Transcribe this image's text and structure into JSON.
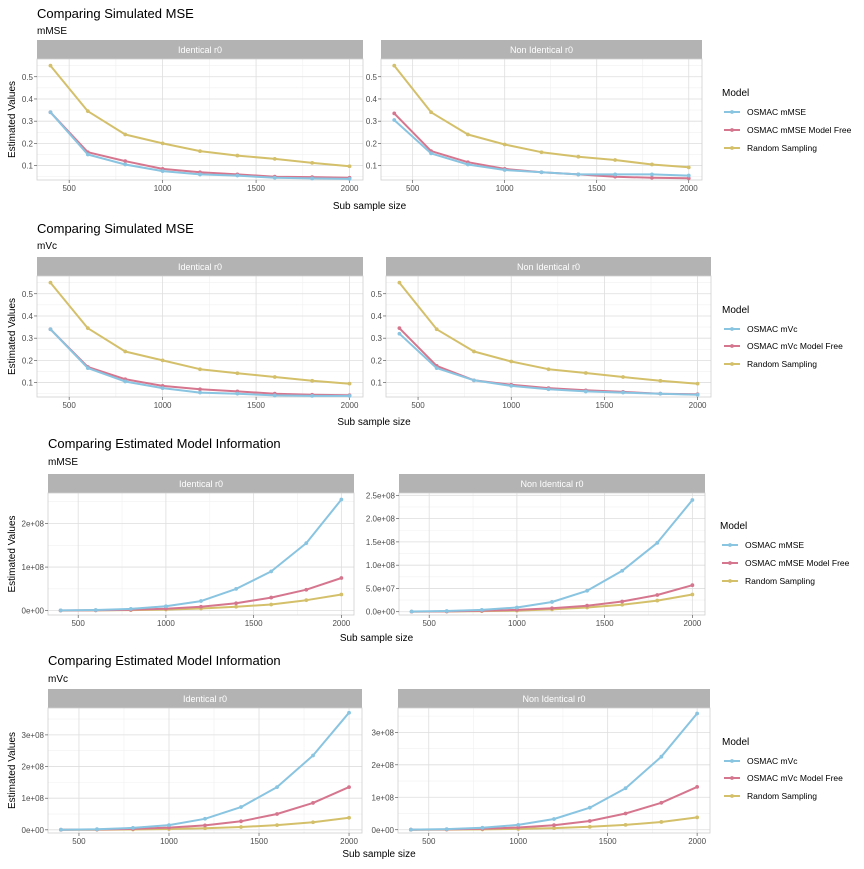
{
  "chart_data": [
    {
      "type": "line",
      "title": "Comparing Simulated MSE",
      "subtitle": "mMSE",
      "xlabel": "Sub sample size",
      "ylabel": "Estimated Values",
      "legend_title": "Model",
      "legend_position": "right",
      "grid": true,
      "x": [
        400,
        600,
        800,
        1000,
        1200,
        1400,
        1600,
        1800,
        2000
      ],
      "xticks": [
        500,
        1000,
        1500,
        2000
      ],
      "panels": [
        {
          "label": "Identical r0",
          "yticks": [
            0.1,
            0.2,
            0.3,
            0.4,
            0.5
          ],
          "ytick_labels": [
            "0.1",
            "0.2",
            "0.3",
            "0.4",
            "0.5"
          ],
          "ylim": [
            0.035,
            0.58
          ],
          "series": [
            {
              "name": "OSMAC mMSE",
              "color": "#89C4E1",
              "values": [
                0.34,
                0.15,
                0.105,
                0.075,
                0.06,
                0.055,
                0.045,
                0.042,
                0.04
              ]
            },
            {
              "name": "OSMAC mMSE Model Free",
              "color": "#D6768E",
              "values": [
                0.34,
                0.16,
                0.12,
                0.085,
                0.07,
                0.06,
                0.05,
                0.048,
                0.045
              ]
            },
            {
              "name": "Random Sampling",
              "color": "#D4C06B",
              "values": [
                0.55,
                0.345,
                0.24,
                0.2,
                0.165,
                0.145,
                0.13,
                0.112,
                0.097
              ]
            }
          ]
        },
        {
          "label": "Non Identical r0",
          "yticks": [
            0.1,
            0.2,
            0.3,
            0.4,
            0.5
          ],
          "ytick_labels": [
            "0.1",
            "0.2",
            "0.3",
            "0.4",
            "0.5"
          ],
          "ylim": [
            0.035,
            0.58
          ],
          "series": [
            {
              "name": "OSMAC mMSE",
              "color": "#89C4E1",
              "values": [
                0.305,
                0.155,
                0.105,
                0.08,
                0.07,
                0.06,
                0.06,
                0.06,
                0.055
              ]
            },
            {
              "name": "OSMAC mMSE Model Free",
              "color": "#D6768E",
              "values": [
                0.335,
                0.165,
                0.115,
                0.085,
                0.07,
                0.06,
                0.05,
                0.045,
                0.043
              ]
            },
            {
              "name": "Random Sampling",
              "color": "#D4C06B",
              "values": [
                0.55,
                0.34,
                0.24,
                0.195,
                0.16,
                0.14,
                0.125,
                0.105,
                0.092
              ]
            }
          ]
        }
      ]
    },
    {
      "type": "line",
      "title": "Comparing Simulated MSE",
      "subtitle": "mVc",
      "xlabel": "Sub sample size",
      "ylabel": "Estimated Values",
      "legend_title": "Model",
      "legend_position": "right",
      "grid": true,
      "x": [
        400,
        600,
        800,
        1000,
        1200,
        1400,
        1600,
        1800,
        2000
      ],
      "xticks": [
        500,
        1000,
        1500,
        2000
      ],
      "panels": [
        {
          "label": "Identical r0",
          "yticks": [
            0.1,
            0.2,
            0.3,
            0.4,
            0.5
          ],
          "ytick_labels": [
            "0.1",
            "0.2",
            "0.3",
            "0.4",
            "0.5"
          ],
          "ylim": [
            0.035,
            0.58
          ],
          "series": [
            {
              "name": "OSMAC mVc",
              "color": "#89C4E1",
              "values": [
                0.34,
                0.165,
                0.105,
                0.075,
                0.055,
                0.05,
                0.042,
                0.04,
                0.04
              ]
            },
            {
              "name": "OSMAC mVc Model Free",
              "color": "#D6768E",
              "values": [
                0.34,
                0.17,
                0.115,
                0.085,
                0.07,
                0.06,
                0.05,
                0.045,
                0.043
              ]
            },
            {
              "name": "Random Sampling",
              "color": "#D4C06B",
              "values": [
                0.55,
                0.345,
                0.24,
                0.2,
                0.16,
                0.142,
                0.125,
                0.108,
                0.095
              ]
            }
          ]
        },
        {
          "label": "Non Identical r0",
          "yticks": [
            0.1,
            0.2,
            0.3,
            0.4,
            0.5
          ],
          "ytick_labels": [
            "0.1",
            "0.2",
            "0.3",
            "0.4",
            "0.5"
          ],
          "ylim": [
            0.035,
            0.58
          ],
          "series": [
            {
              "name": "OSMAC mVc",
              "color": "#89C4E1",
              "values": [
                0.32,
                0.165,
                0.11,
                0.085,
                0.07,
                0.06,
                0.055,
                0.05,
                0.045
              ]
            },
            {
              "name": "OSMAC mVc Model Free",
              "color": "#D6768E",
              "values": [
                0.345,
                0.175,
                0.11,
                0.09,
                0.075,
                0.065,
                0.058,
                0.05,
                0.047
              ]
            },
            {
              "name": "Random Sampling",
              "color": "#D4C06B",
              "values": [
                0.55,
                0.34,
                0.24,
                0.195,
                0.16,
                0.143,
                0.125,
                0.108,
                0.095
              ]
            }
          ]
        }
      ]
    },
    {
      "type": "line",
      "title": "Comparing Estimated Model Information",
      "subtitle": "mMSE",
      "xlabel": "Sub sample size",
      "ylabel": "Estimated Values",
      "legend_title": "Model",
      "legend_position": "right",
      "grid": true,
      "x": [
        400,
        600,
        800,
        1000,
        1200,
        1400,
        1600,
        1800,
        2000
      ],
      "xticks": [
        500,
        1000,
        1500,
        2000
      ],
      "panels": [
        {
          "label": "Identical r0",
          "yticks": [
            0,
            100000000,
            200000000
          ],
          "ytick_labels": [
            "0e+00",
            "1e+08",
            "2e+08"
          ],
          "ylim": [
            -10000000,
            270000000
          ],
          "series": [
            {
              "name": "OSMAC mMSE",
              "color": "#89C4E1",
              "values": [
                500000,
                1500000,
                4000000,
                10000000,
                22000000,
                50000000,
                90000000,
                155000000,
                255000000
              ]
            },
            {
              "name": "OSMAC mMSE Model Free",
              "color": "#D6768E",
              "values": [
                300000,
                800000,
                2000000,
                4500000,
                9000000,
                17000000,
                30000000,
                48000000,
                75000000
              ]
            },
            {
              "name": "Random Sampling",
              "color": "#D4C06B",
              "values": [
                200000,
                600000,
                1300000,
                2500000,
                5000000,
                9000000,
                14000000,
                24000000,
                37000000
              ]
            }
          ]
        },
        {
          "label": "Non Identical r0",
          "yticks": [
            0,
            50000000,
            100000000,
            150000000,
            200000000,
            250000000
          ],
          "ytick_labels": [
            "0.0e+00",
            "5.0e+07",
            "1.0e+08",
            "1.5e+08",
            "2.0e+08",
            "2.5e+08"
          ],
          "ylim": [
            -7000000,
            255000000
          ],
          "series": [
            {
              "name": "OSMAC mMSE",
              "color": "#89C4E1",
              "values": [
                500000,
                1500000,
                4000000,
                9000000,
                21000000,
                45000000,
                88000000,
                148000000,
                240000000
              ]
            },
            {
              "name": "OSMAC mMSE Model Free",
              "color": "#D6768E",
              "values": [
                300000,
                700000,
                2000000,
                4000000,
                7500000,
                13000000,
                22000000,
                36000000,
                57000000
              ]
            },
            {
              "name": "Random Sampling",
              "color": "#D4C06B",
              "values": [
                200000,
                500000,
                1300000,
                2500000,
                5000000,
                9000000,
                15000000,
                24000000,
                37000000
              ]
            }
          ]
        }
      ]
    },
    {
      "type": "line",
      "title": "Comparing Estimated Model Information",
      "subtitle": "mVc",
      "xlabel": "Sub sample size",
      "ylabel": "Estimated Values",
      "legend_title": "Model",
      "legend_position": "right",
      "grid": true,
      "x": [
        400,
        600,
        800,
        1000,
        1200,
        1400,
        1600,
        1800,
        2000
      ],
      "xticks": [
        500,
        1000,
        1500,
        2000
      ],
      "panels": [
        {
          "label": "Identical r0",
          "yticks": [
            0,
            100000000,
            200000000,
            300000000
          ],
          "ytick_labels": [
            "0e+00",
            "1e+08",
            "2e+08",
            "3e+08"
          ],
          "ylim": [
            -10000000,
            385000000
          ],
          "series": [
            {
              "name": "OSMAC mVc",
              "color": "#89C4E1",
              "values": [
                500000,
                2000000,
                6000000,
                15000000,
                35000000,
                72000000,
                135000000,
                235000000,
                370000000
              ]
            },
            {
              "name": "OSMAC mVc Model Free",
              "color": "#D6768E",
              "values": [
                300000,
                1000000,
                3000000,
                7000000,
                14000000,
                27000000,
                50000000,
                85000000,
                135000000
              ]
            },
            {
              "name": "Random Sampling",
              "color": "#D4C06B",
              "values": [
                200000,
                500000,
                1000000,
                2500000,
                5000000,
                9000000,
                15000000,
                24000000,
                38000000
              ]
            }
          ]
        },
        {
          "label": "Non Identical r0",
          "yticks": [
            0,
            100000000,
            200000000,
            300000000
          ],
          "ytick_labels": [
            "0e+00",
            "1e+08",
            "2e+08",
            "3e+08"
          ],
          "ylim": [
            -10000000,
            375000000
          ],
          "series": [
            {
              "name": "OSMAC mVc",
              "color": "#89C4E1",
              "values": [
                500000,
                2000000,
                6000000,
                15000000,
                33000000,
                68000000,
                128000000,
                225000000,
                358000000
              ]
            },
            {
              "name": "OSMAC mVc Model Free",
              "color": "#D6768E",
              "values": [
                300000,
                1000000,
                3000000,
                7000000,
                14000000,
                27000000,
                50000000,
                83000000,
                132000000
              ]
            },
            {
              "name": "Random Sampling",
              "color": "#D4C06B",
              "values": [
                200000,
                500000,
                1000000,
                2500000,
                5000000,
                9000000,
                15000000,
                24000000,
                38000000
              ]
            }
          ]
        }
      ]
    }
  ]
}
